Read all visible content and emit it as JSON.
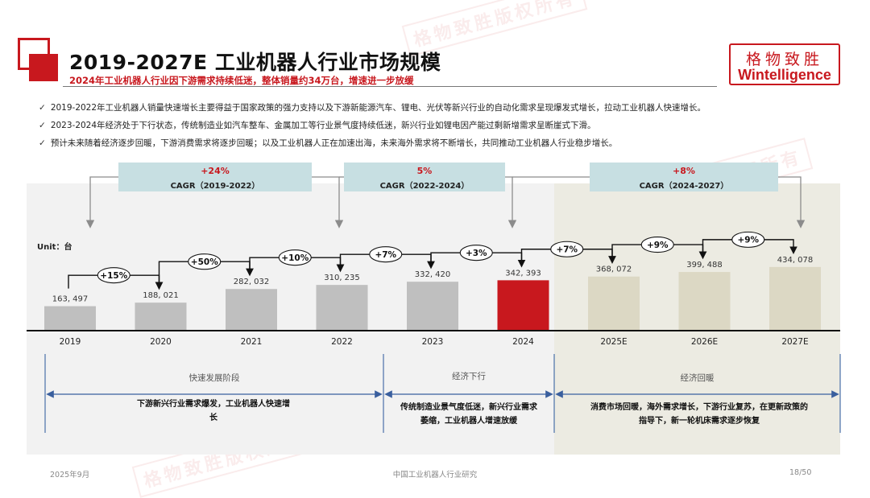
{
  "header": {
    "title": "2019-2027E 工业机器人行业市场规模",
    "subtitle": "2024年工业机器人行业因下游需求持续低迷，整体销量约34万台，增速进一步放缓",
    "brand_cn": "格物致胜",
    "brand_en": "Wintelligence"
  },
  "bullets": [
    "2019-2022年工业机器人销量快速增长主要得益于国家政策的强力支持以及下游新能源汽车、锂电、光伏等新兴行业的自动化需求呈现爆发式增长，拉动工业机器人快速增长。",
    "2023-2024年经济处于下行状态，传统制造业如汽车整车、金属加工等行业景气度持续低迷，新兴行业如锂电因产能过剩新增需求呈断崖式下滑。",
    "预计未来随着经济逐步回暖，下游消费需求将逐步回暖；以及工业机器人正在加速出海，未来海外需求将不断增长，共同推动工业机器人行业稳步增长。"
  ],
  "watermark": "格物致胜版权所有",
  "cagr": [
    {
      "pct": "+24%",
      "label": "CAGR（2019-2022）"
    },
    {
      "pct": "5%",
      "label": "CAGR（2022-2024）"
    },
    {
      "pct": "+8%",
      "label": "CAGR（2024-2027）"
    }
  ],
  "unit_label": "Unit：台",
  "chart_data": {
    "type": "bar",
    "categories": [
      "2019",
      "2020",
      "2021",
      "2022",
      "2023",
      "2024",
      "2025E",
      "2026E",
      "2027E"
    ],
    "values": [
      163497,
      188021,
      282032,
      310235,
      332420,
      342393,
      368072,
      399488,
      434078
    ],
    "value_labels": [
      "163, 497",
      "188, 021",
      "282, 032",
      "310, 235",
      "332, 420",
      "342, 393",
      "368, 072",
      "399, 488",
      "434, 078"
    ],
    "growth_labels": [
      "+15%",
      "+50%",
      "+10%",
      "+7%",
      "+3%",
      "+7%",
      "+9%",
      "+9%"
    ],
    "colors": {
      "historical": "#bfbfbf",
      "highlight": "#c8181e",
      "forecast": "#dcd8c4"
    },
    "highlight_index": 5,
    "forecast_from_index": 6
  },
  "stages": [
    {
      "name": "快速发展阶段",
      "desc": [
        "下游新兴行业需求爆发，工业机器人快速增",
        "长"
      ]
    },
    {
      "name": "经济下行",
      "desc": [
        "传统制造业景气度低迷，新兴行业需求",
        "萎缩，工业机器人增速放缓"
      ]
    },
    {
      "name": "经济回暖",
      "desc": [
        "消费市场回暖，海外需求增长，下游行业复苏，在更新政策的",
        "指导下，新一轮机床需求逐步恢复"
      ]
    }
  ],
  "footer": {
    "date": "2025年9月",
    "center": "中国工业机器人行业研究",
    "page": "18/50"
  }
}
